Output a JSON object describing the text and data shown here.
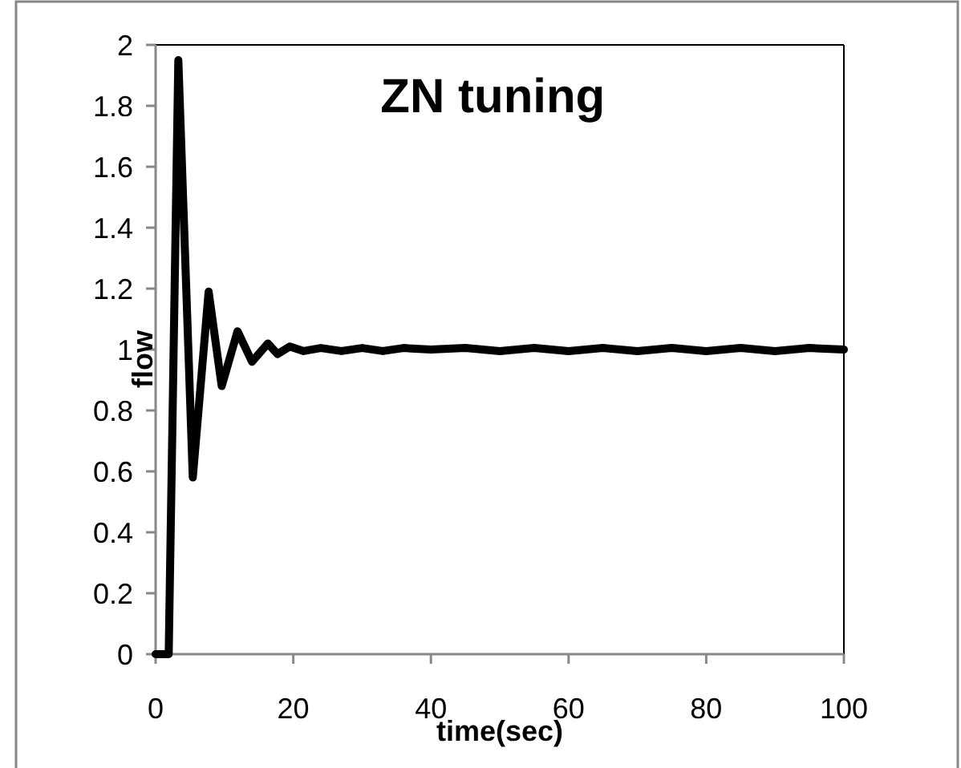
{
  "chart_data": {
    "type": "line",
    "title": "ZN tuning",
    "xlabel": "time(sec)",
    "ylabel": "flow",
    "xlim": [
      0,
      100
    ],
    "ylim": [
      0,
      2
    ],
    "xticks": [
      0,
      20,
      40,
      60,
      80,
      100
    ],
    "yticks": [
      0,
      0.2,
      0.4,
      0.6,
      0.8,
      1,
      1.2,
      1.4,
      1.6,
      1.8,
      2
    ],
    "series": [
      {
        "color": "#000000",
        "x": [
          0,
          1.9,
          3.3,
          5.4,
          7.7,
          9.6,
          11.9,
          14,
          16.3,
          17.7,
          19.5,
          21.5,
          24,
          27,
          30,
          33,
          36,
          40,
          45,
          50,
          55,
          60,
          65,
          70,
          75,
          80,
          85,
          90,
          95,
          100
        ],
        "values": [
          0,
          0,
          1.95,
          0.58,
          1.19,
          0.88,
          1.06,
          0.96,
          1.02,
          0.985,
          1.01,
          0.995,
          1.005,
          0.995,
          1.005,
          0.995,
          1.005,
          1,
          1.005,
          0.995,
          1.005,
          0.995,
          1.005,
          0.995,
          1.005,
          0.995,
          1.005,
          0.995,
          1.005,
          1
        ]
      }
    ],
    "grid": false,
    "marker": "none",
    "line_style": "solid"
  }
}
